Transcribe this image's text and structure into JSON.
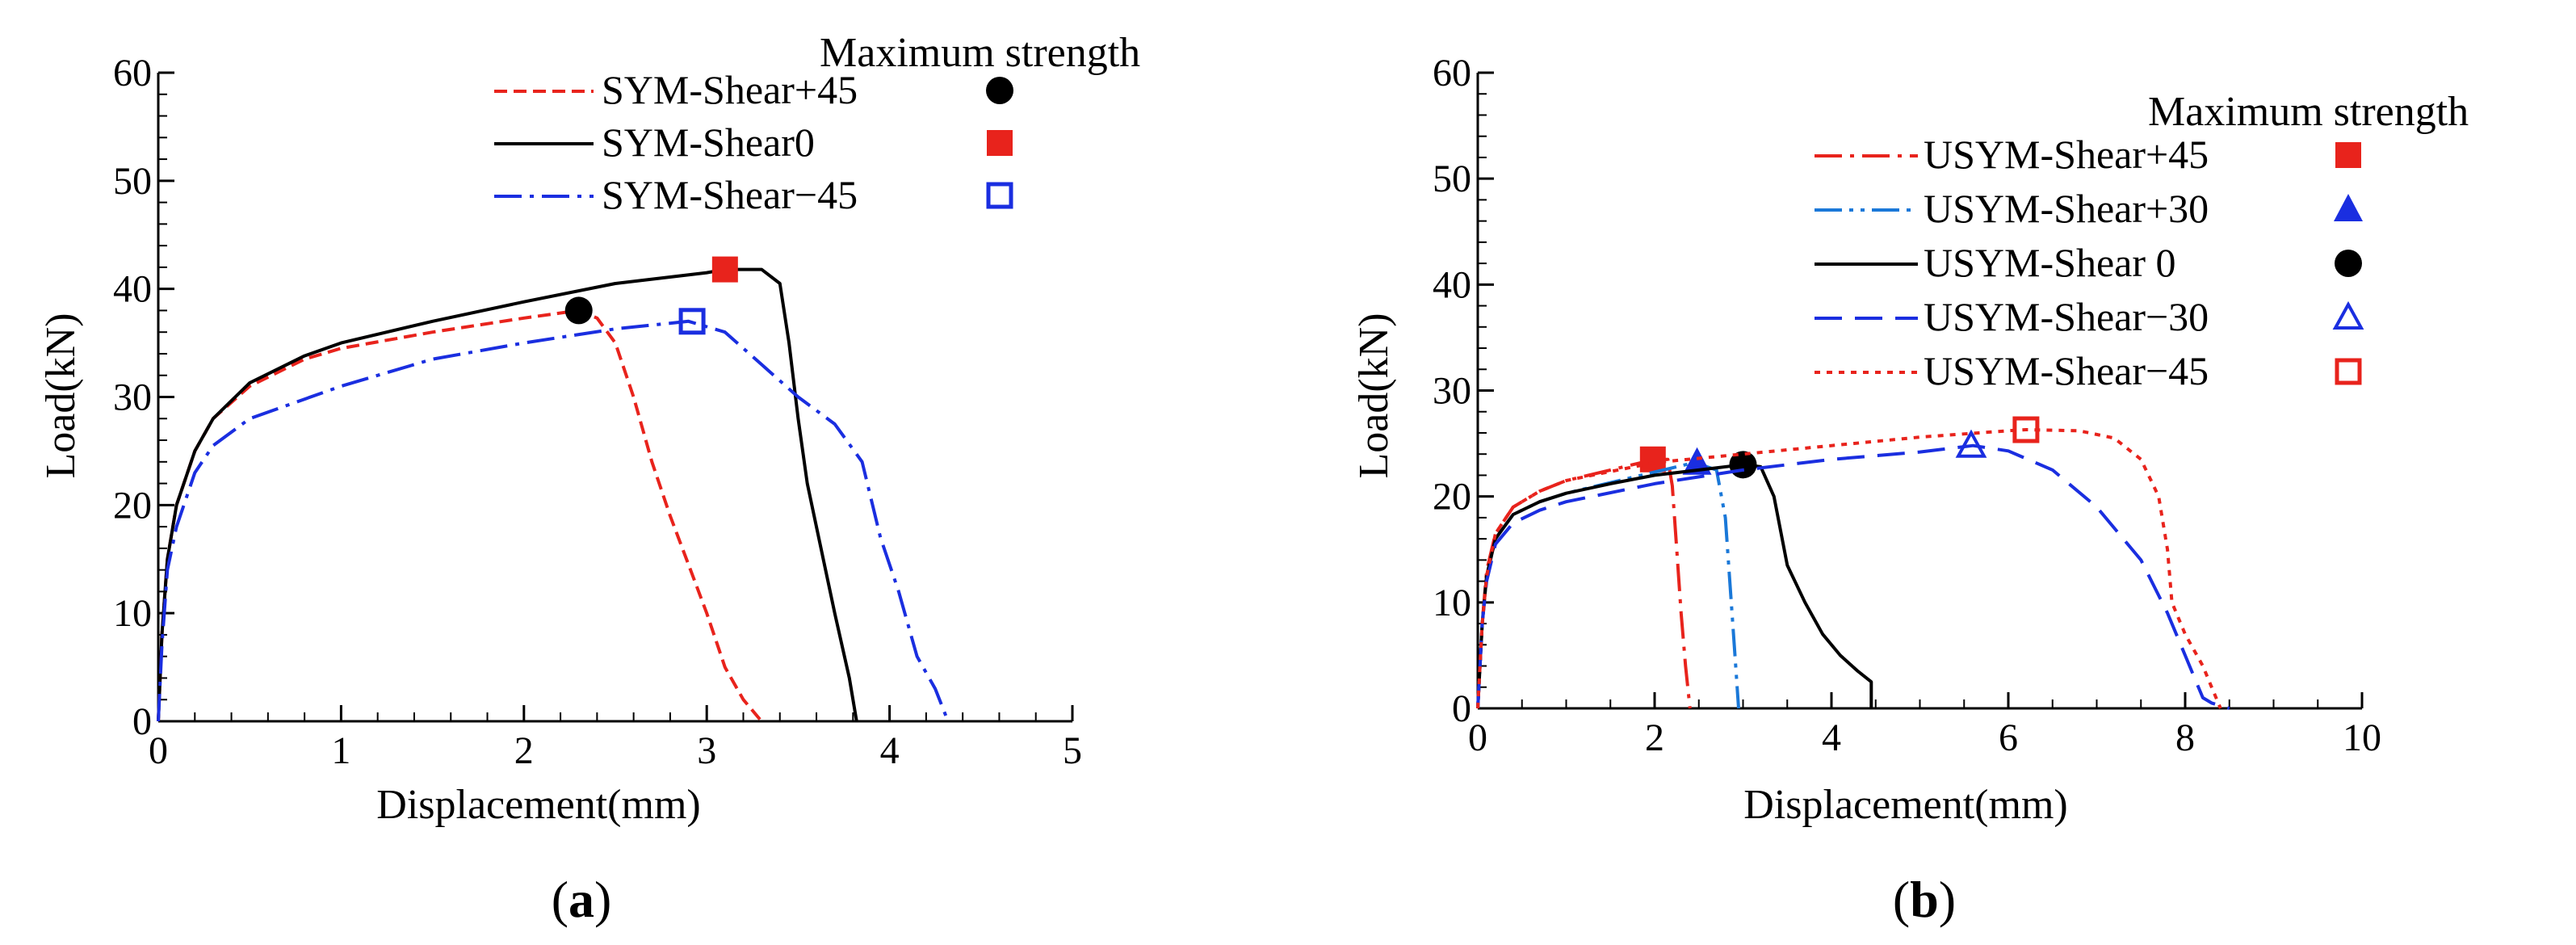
{
  "chart_data": [
    {
      "type": "line",
      "panel_label": "a",
      "xlabel": "Displacement(mm)",
      "ylabel": "Load(kN)",
      "xlim": [
        0,
        5
      ],
      "ylim": [
        0,
        60
      ],
      "xticks": [
        0,
        1,
        2,
        3,
        4,
        5
      ],
      "yticks": [
        0,
        10,
        20,
        30,
        40,
        50,
        60
      ],
      "xtick_labels": [
        "0",
        "1",
        "2",
        "3",
        "4",
        "5"
      ],
      "ytick_labels": [
        "0",
        "10",
        "20",
        "30",
        "40",
        "50",
        "60"
      ],
      "legend_title": "Maximum strength",
      "legend_position": "top-right",
      "series": [
        {
          "name": "SYM-Shear+45",
          "color": "#e8231c",
          "dash": "short-dash",
          "marker": "filled-circle",
          "marker_color": "#000000",
          "points": [
            [
              0,
              0
            ],
            [
              0.02,
              8
            ],
            [
              0.05,
              15
            ],
            [
              0.1,
              20
            ],
            [
              0.2,
              25
            ],
            [
              0.3,
              28
            ],
            [
              0.5,
              31
            ],
            [
              0.8,
              33.5
            ],
            [
              1.0,
              34.5
            ],
            [
              1.5,
              36
            ],
            [
              2.0,
              37.3
            ],
            [
              2.3,
              38
            ],
            [
              2.4,
              37.3
            ],
            [
              2.5,
              35
            ],
            [
              2.6,
              30
            ],
            [
              2.7,
              24
            ],
            [
              2.8,
              19
            ],
            [
              2.9,
              14.5
            ],
            [
              3.0,
              10
            ],
            [
              3.1,
              5
            ],
            [
              3.2,
              2
            ],
            [
              3.3,
              0
            ]
          ],
          "max_point": [
            2.3,
            38.0
          ]
        },
        {
          "name": "SYM-Shear0",
          "color": "#000000",
          "dash": "solid",
          "marker": "filled-square",
          "marker_color": "#e8231c",
          "points": [
            [
              0,
              0
            ],
            [
              0.02,
              8
            ],
            [
              0.05,
              15
            ],
            [
              0.1,
              20
            ],
            [
              0.2,
              25
            ],
            [
              0.3,
              28
            ],
            [
              0.5,
              31.3
            ],
            [
              0.8,
              33.8
            ],
            [
              1.0,
              35
            ],
            [
              1.5,
              37
            ],
            [
              2.0,
              38.8
            ],
            [
              2.5,
              40.5
            ],
            [
              3.0,
              41.5
            ],
            [
              3.1,
              41.8
            ],
            [
              3.3,
              41.8
            ],
            [
              3.4,
              40.5
            ],
            [
              3.45,
              35
            ],
            [
              3.5,
              28
            ],
            [
              3.55,
              22
            ],
            [
              3.6,
              18
            ],
            [
              3.7,
              10
            ],
            [
              3.78,
              4
            ],
            [
              3.82,
              0
            ]
          ],
          "max_point": [
            3.1,
            41.8
          ]
        },
        {
          "name": "SYM-Shear−45",
          "color": "#1a2ee0",
          "dash": "dash-dot",
          "marker": "open-square",
          "marker_color": "#1a2ee0",
          "points": [
            [
              0,
              0
            ],
            [
              0.02,
              7
            ],
            [
              0.05,
              14
            ],
            [
              0.1,
              18
            ],
            [
              0.2,
              23
            ],
            [
              0.3,
              25.5
            ],
            [
              0.5,
              28
            ],
            [
              1.0,
              31
            ],
            [
              1.5,
              33.5
            ],
            [
              2.0,
              35
            ],
            [
              2.5,
              36.3
            ],
            [
              2.9,
              37
            ],
            [
              3.1,
              36
            ],
            [
              3.3,
              33
            ],
            [
              3.5,
              30
            ],
            [
              3.7,
              27.5
            ],
            [
              3.85,
              24
            ],
            [
              3.95,
              17
            ],
            [
              4.05,
              12
            ],
            [
              4.15,
              6
            ],
            [
              4.25,
              3
            ],
            [
              4.32,
              0
            ]
          ],
          "max_point": [
            2.92,
            37.0
          ]
        }
      ]
    },
    {
      "type": "line",
      "panel_label": "b",
      "xlabel": "Displacement(mm)",
      "ylabel": "Load(kN)",
      "xlim": [
        0,
        10
      ],
      "ylim": [
        0,
        60
      ],
      "xticks": [
        0,
        2,
        4,
        6,
        8,
        10
      ],
      "yticks": [
        0,
        10,
        20,
        30,
        40,
        50,
        60
      ],
      "xtick_labels": [
        "0",
        "2",
        "4",
        "6",
        "8",
        "10"
      ],
      "ytick_labels": [
        "0",
        "10",
        "20",
        "30",
        "40",
        "50",
        "60"
      ],
      "legend_title": "Maximum strength",
      "legend_position": "top-right",
      "series": [
        {
          "name": "USYM-Shear+45",
          "color": "#e8231c",
          "dash": "dash-dot",
          "marker": "filled-square",
          "marker_color": "#e8231c",
          "points": [
            [
              0,
              0
            ],
            [
              0.05,
              8
            ],
            [
              0.1,
              13
            ],
            [
              0.2,
              16.5
            ],
            [
              0.4,
              19
            ],
            [
              0.7,
              20.5
            ],
            [
              1.0,
              21.5
            ],
            [
              1.5,
              22.5
            ],
            [
              2.0,
              23.5
            ],
            [
              2.15,
              23.5
            ],
            [
              2.2,
              21
            ],
            [
              2.25,
              15
            ],
            [
              2.3,
              9
            ],
            [
              2.35,
              4
            ],
            [
              2.4,
              0
            ]
          ],
          "max_point": [
            1.98,
            23.5
          ]
        },
        {
          "name": "USYM-Shear+30",
          "color": "#1a78d8",
          "dash": "dash-dot-dot",
          "marker": "filled-triangle",
          "marker_color": "#1a2ee0",
          "points": [
            [
              0,
              0
            ],
            [
              0.05,
              8
            ],
            [
              0.1,
              12.5
            ],
            [
              0.2,
              16
            ],
            [
              0.4,
              18.3
            ],
            [
              0.7,
              19.5
            ],
            [
              1.0,
              20.3
            ],
            [
              1.5,
              21.3
            ],
            [
              2.0,
              22.3
            ],
            [
              2.45,
              23.2
            ],
            [
              2.7,
              22.5
            ],
            [
              2.8,
              18
            ],
            [
              2.85,
              12
            ],
            [
              2.9,
              6
            ],
            [
              2.95,
              0
            ]
          ],
          "max_point": [
            2.48,
            23.2
          ]
        },
        {
          "name": "USYM-Shear 0",
          "color": "#000000",
          "dash": "solid",
          "marker": "filled-circle",
          "marker_color": "#000000",
          "points": [
            [
              0,
              0
            ],
            [
              0.05,
              8
            ],
            [
              0.1,
              12.5
            ],
            [
              0.2,
              16
            ],
            [
              0.4,
              18.3
            ],
            [
              0.7,
              19.5
            ],
            [
              1.0,
              20.3
            ],
            [
              1.5,
              21.2
            ],
            [
              2.0,
              22
            ],
            [
              2.5,
              22.5
            ],
            [
              3.0,
              23
            ],
            [
              3.2,
              22.8
            ],
            [
              3.35,
              20
            ],
            [
              3.5,
              13.5
            ],
            [
              3.7,
              10
            ],
            [
              3.9,
              7
            ],
            [
              4.1,
              5
            ],
            [
              4.3,
              3.5
            ],
            [
              4.45,
              2.5
            ],
            [
              4.45,
              0
            ]
          ],
          "max_point": [
            3.0,
            23.0
          ]
        },
        {
          "name": "USYM-Shear−30",
          "color": "#1a2ee0",
          "dash": "long-dash",
          "marker": "open-triangle",
          "marker_color": "#1a2ee0",
          "points": [
            [
              0,
              0
            ],
            [
              0.05,
              8
            ],
            [
              0.1,
              12
            ],
            [
              0.2,
              15.5
            ],
            [
              0.4,
              17.5
            ],
            [
              0.7,
              18.7
            ],
            [
              1.0,
              19.5
            ],
            [
              2.0,
              21.2
            ],
            [
              3.0,
              22.5
            ],
            [
              4.0,
              23.5
            ],
            [
              5.0,
              24.2
            ],
            [
              5.6,
              24.8
            ],
            [
              6.0,
              24.3
            ],
            [
              6.5,
              22.5
            ],
            [
              7.0,
              19
            ],
            [
              7.5,
              14
            ],
            [
              7.8,
              9
            ],
            [
              8.0,
              5
            ],
            [
              8.1,
              3
            ],
            [
              8.2,
              1
            ],
            [
              8.3,
              0.5
            ],
            [
              8.5,
              0
            ]
          ],
          "max_point": [
            5.58,
            24.8
          ]
        },
        {
          "name": "USYM-Shear−45",
          "color": "#e8231c",
          "dash": "dotted",
          "marker": "open-square",
          "marker_color": "#e8231c",
          "points": [
            [
              0,
              0
            ],
            [
              0.05,
              8
            ],
            [
              0.1,
              12.5
            ],
            [
              0.2,
              16.5
            ],
            [
              0.4,
              19
            ],
            [
              0.7,
              20.5
            ],
            [
              1.0,
              21.5
            ],
            [
              2.0,
              23.2
            ],
            [
              3.0,
              24
            ],
            [
              4.0,
              24.8
            ],
            [
              5.0,
              25.6
            ],
            [
              6.0,
              26.2
            ],
            [
              6.2,
              26.3
            ],
            [
              6.8,
              26.2
            ],
            [
              7.2,
              25.5
            ],
            [
              7.5,
              23.5
            ],
            [
              7.7,
              20
            ],
            [
              7.8,
              15
            ],
            [
              7.85,
              10
            ],
            [
              8.0,
              7
            ],
            [
              8.2,
              4
            ],
            [
              8.3,
              2
            ],
            [
              8.4,
              0
            ]
          ],
          "max_point": [
            6.2,
            26.3
          ]
        }
      ]
    }
  ]
}
